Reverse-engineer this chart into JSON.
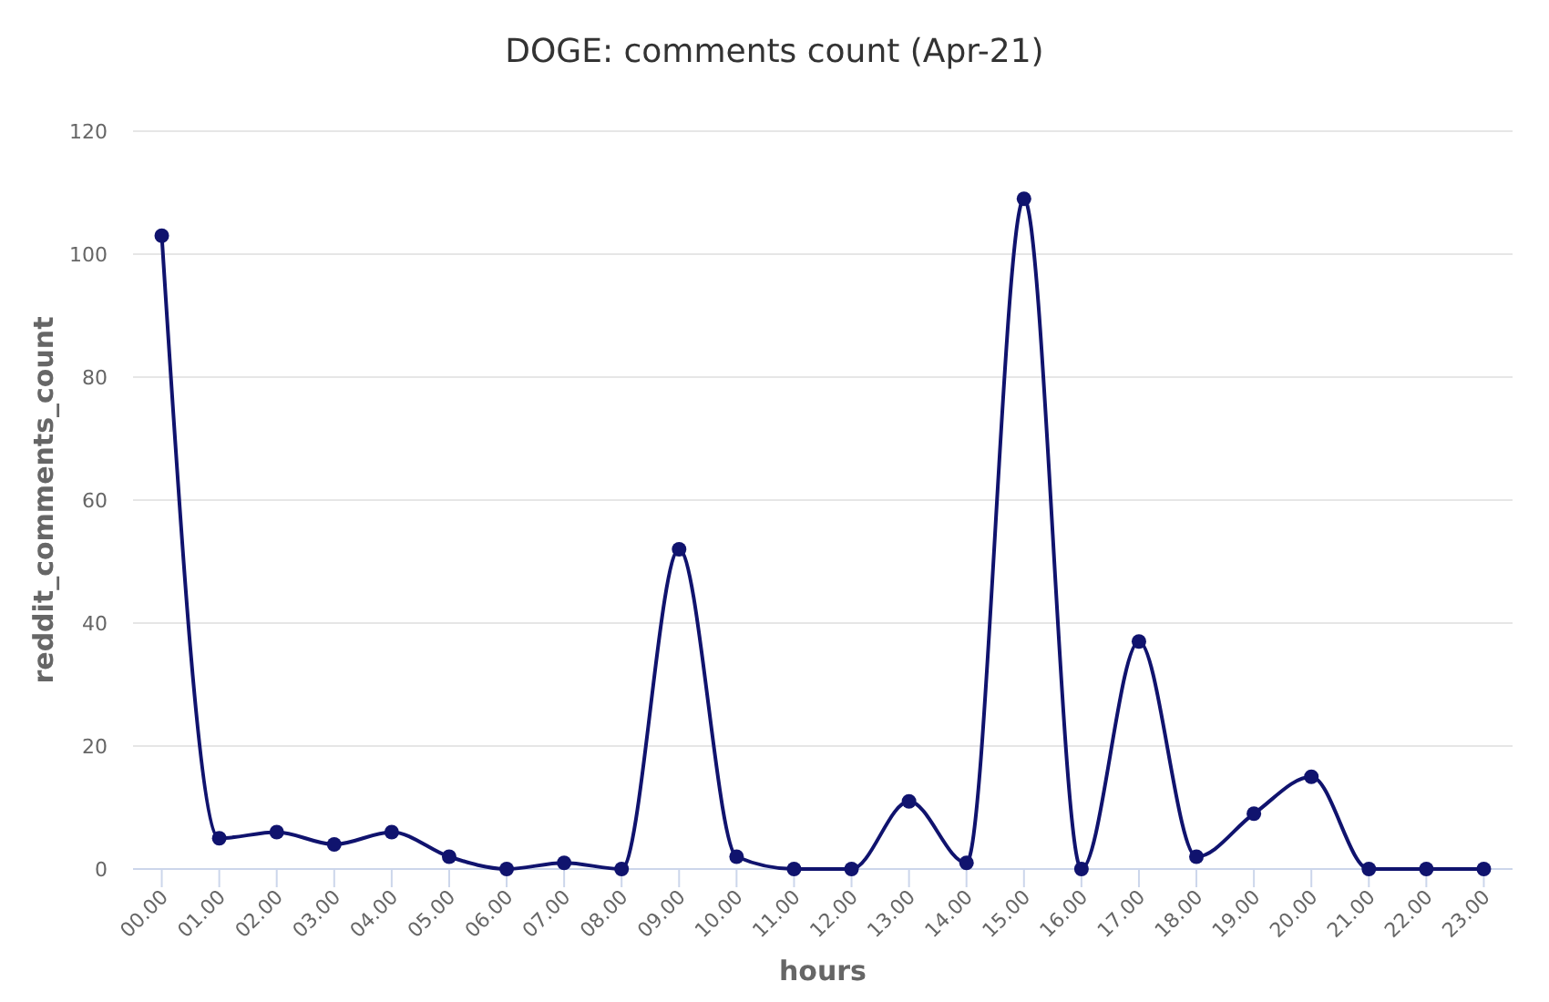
{
  "chart_data": {
    "type": "line",
    "title": "DOGE: comments count (Apr-21)",
    "xlabel": "hours",
    "ylabel": "reddit_comments_count",
    "categories": [
      "00.00",
      "01.00",
      "02.00",
      "03.00",
      "04.00",
      "05.00",
      "06.00",
      "07.00",
      "08.00",
      "09.00",
      "10.00",
      "11.00",
      "12.00",
      "13.00",
      "14.00",
      "15.00",
      "16.00",
      "17.00",
      "18.00",
      "19.00",
      "20.00",
      "21.00",
      "22.00",
      "23.00"
    ],
    "series": [
      {
        "color": "#10136e",
        "values": [
          103,
          5,
          6,
          4,
          6,
          2,
          0,
          1,
          0,
          52,
          2,
          0,
          0,
          11,
          1,
          109,
          0,
          37,
          2,
          9,
          15,
          0,
          0,
          0
        ]
      }
    ],
    "ylim": [
      0,
      120
    ],
    "yticks": [
      0,
      20,
      40,
      60,
      80,
      100,
      120
    ],
    "grid": "y",
    "marker": "circle",
    "line_style": "solid"
  }
}
